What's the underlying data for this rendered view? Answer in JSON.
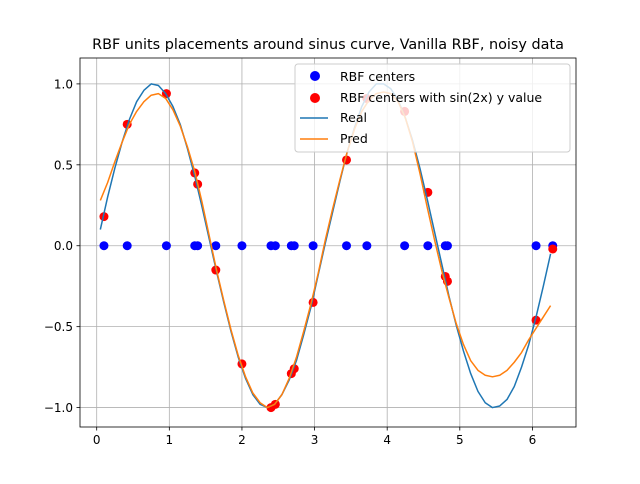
{
  "chart_data": {
    "type": "scatter",
    "title": "RBF units placements around sinus curve, Vanilla RBF, noisy data",
    "xlabel": "",
    "ylabel": "",
    "xlim": [
      -0.23,
      6.6
    ],
    "ylim": [
      -1.12,
      1.16
    ],
    "xticks": [
      0,
      1,
      2,
      3,
      4,
      5,
      6
    ],
    "yticks": [
      -1.0,
      -0.5,
      0.0,
      0.5,
      1.0
    ],
    "xtick_labels": [
      "0",
      "1",
      "2",
      "3",
      "4",
      "5",
      "6"
    ],
    "ytick_labels": [
      "−1.0",
      "−0.5",
      "0.0",
      "0.5",
      "1.0"
    ],
    "grid": true,
    "legend_position": "top-right",
    "series": [
      {
        "name": "RBF centers",
        "kind": "scatter",
        "color": "#0000ff",
        "x": [
          0.1,
          0.42,
          0.96,
          1.35,
          1.39,
          1.64,
          2.0,
          2.4,
          2.46,
          2.68,
          2.72,
          2.98,
          3.44,
          3.72,
          4.24,
          4.56,
          4.8,
          4.83,
          6.05,
          6.28
        ],
        "y": [
          0,
          0,
          0,
          0,
          0,
          0,
          0,
          0,
          0,
          0,
          0,
          0,
          0,
          0,
          0,
          0,
          0,
          0,
          0,
          0
        ]
      },
      {
        "name": "RBF centers with sin(2x) y value",
        "kind": "scatter",
        "color": "#ff0000",
        "x": [
          0.1,
          0.42,
          0.96,
          1.35,
          1.39,
          1.64,
          2.0,
          2.4,
          2.46,
          2.68,
          2.72,
          2.98,
          3.44,
          3.72,
          4.24,
          4.56,
          4.8,
          4.83,
          6.05,
          6.28
        ],
        "y": [
          0.18,
          0.75,
          0.94,
          0.45,
          0.38,
          -0.15,
          -0.73,
          -1.0,
          -0.98,
          -0.79,
          -0.76,
          -0.35,
          0.53,
          0.91,
          0.83,
          0.33,
          -0.19,
          -0.22,
          -0.46,
          -0.02
        ]
      },
      {
        "name": "Real",
        "kind": "line",
        "color": "#1f77b4",
        "x": [
          0.05,
          0.15,
          0.25,
          0.35,
          0.45,
          0.55,
          0.65,
          0.75,
          0.85,
          0.95,
          1.05,
          1.15,
          1.25,
          1.35,
          1.45,
          1.55,
          1.65,
          1.75,
          1.85,
          1.95,
          2.05,
          2.15,
          2.25,
          2.35,
          2.45,
          2.55,
          2.65,
          2.75,
          2.85,
          2.95,
          3.05,
          3.15,
          3.25,
          3.35,
          3.45,
          3.55,
          3.65,
          3.75,
          3.85,
          3.95,
          4.05,
          4.15,
          4.25,
          4.35,
          4.45,
          4.55,
          4.65,
          4.75,
          4.85,
          4.95,
          5.05,
          5.15,
          5.25,
          5.35,
          5.45,
          5.55,
          5.65,
          5.75,
          5.85,
          5.95,
          6.05,
          6.15,
          6.25
        ],
        "y": [
          0.1,
          0.3,
          0.48,
          0.64,
          0.78,
          0.89,
          0.96,
          1.0,
          0.99,
          0.94,
          0.86,
          0.75,
          0.6,
          0.43,
          0.24,
          0.04,
          -0.16,
          -0.35,
          -0.53,
          -0.69,
          -0.82,
          -0.92,
          -0.98,
          -1.0,
          -0.98,
          -0.92,
          -0.83,
          -0.71,
          -0.55,
          -0.38,
          -0.18,
          0.02,
          0.21,
          0.4,
          0.58,
          0.73,
          0.86,
          0.95,
          1.0,
          1.0,
          0.97,
          0.9,
          0.79,
          0.65,
          0.48,
          0.29,
          0.09,
          -0.11,
          -0.31,
          -0.49,
          -0.65,
          -0.79,
          -0.9,
          -0.97,
          -1.0,
          -0.99,
          -0.95,
          -0.87,
          -0.75,
          -0.61,
          -0.44,
          -0.25,
          -0.05
        ]
      },
      {
        "name": "Pred",
        "kind": "line",
        "color": "#ff7f0e",
        "x": [
          0.05,
          0.15,
          0.25,
          0.35,
          0.45,
          0.55,
          0.65,
          0.75,
          0.85,
          0.95,
          1.05,
          1.15,
          1.25,
          1.35,
          1.45,
          1.55,
          1.65,
          1.75,
          1.85,
          1.95,
          2.05,
          2.15,
          2.25,
          2.35,
          2.45,
          2.55,
          2.65,
          2.75,
          2.85,
          2.95,
          3.05,
          3.15,
          3.25,
          3.35,
          3.45,
          3.55,
          3.65,
          3.75,
          3.85,
          3.95,
          4.05,
          4.15,
          4.25,
          4.35,
          4.45,
          4.55,
          4.65,
          4.75,
          4.85,
          4.95,
          5.05,
          5.15,
          5.25,
          5.35,
          5.45,
          5.55,
          5.65,
          5.75,
          5.85,
          5.95,
          6.05,
          6.15,
          6.25
        ],
        "y": [
          0.28,
          0.39,
          0.52,
          0.64,
          0.75,
          0.83,
          0.89,
          0.93,
          0.94,
          0.91,
          0.84,
          0.74,
          0.61,
          0.46,
          0.27,
          0.06,
          -0.15,
          -0.34,
          -0.52,
          -0.68,
          -0.81,
          -0.91,
          -0.97,
          -1.0,
          -0.98,
          -0.92,
          -0.82,
          -0.69,
          -0.53,
          -0.36,
          -0.17,
          0.04,
          0.23,
          0.41,
          0.58,
          0.72,
          0.83,
          0.9,
          0.94,
          0.95,
          0.94,
          0.89,
          0.79,
          0.64,
          0.45,
          0.24,
          0.04,
          -0.15,
          -0.32,
          -0.48,
          -0.61,
          -0.71,
          -0.77,
          -0.8,
          -0.81,
          -0.8,
          -0.77,
          -0.72,
          -0.66,
          -0.58,
          -0.51,
          -0.44,
          -0.37
        ]
      }
    ]
  }
}
